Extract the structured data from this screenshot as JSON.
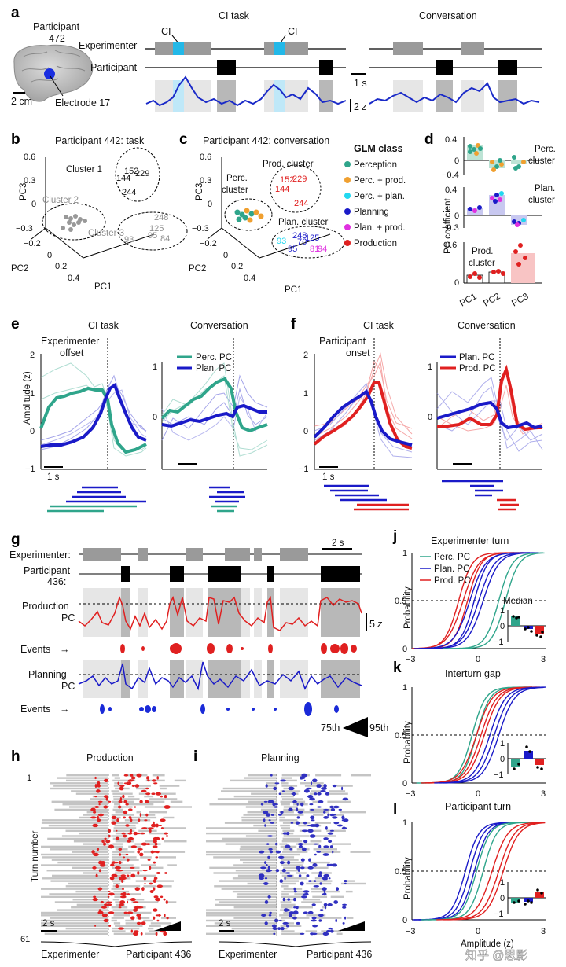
{
  "panels": {
    "a": "a",
    "b": "b",
    "c": "c",
    "d": "d",
    "e": "e",
    "f": "f",
    "g": "g",
    "h": "h",
    "i": "i",
    "j": "j",
    "k": "k",
    "l": "l"
  },
  "a": {
    "participant": "Participant",
    "participant_id": "472",
    "scale": "2 cm",
    "electrode": "Electrode 17",
    "title_task": "CI task",
    "title_conv": "Conversation",
    "row_experimenter": "Experimenter",
    "row_participant": "Participant",
    "ci1": "CI",
    "ci2": "CI",
    "time_scale": "1 s",
    "amp_scale_num": "2",
    "amp_scale_unit": "z"
  },
  "b": {
    "title": "Participant 442: task",
    "cluster1": "Cluster 1",
    "cluster2": "Cluster 2",
    "cluster3": "Cluster 3",
    "pc1": "PC1",
    "pc2": "PC2",
    "pc3": "PC3",
    "z_ticks": [
      "0.6",
      "0.3",
      "0",
      "−0.3"
    ],
    "y_ticks": [
      "−0.2",
      "0",
      "0.2",
      "0.4"
    ],
    "c1_nums": [
      "152",
      "229",
      "144",
      "244"
    ],
    "c3_nums": [
      "248",
      "125",
      "95",
      "93",
      "84"
    ]
  },
  "c": {
    "title": "Participant 442: conversation",
    "perc_cluster": "Perc.\ncluster",
    "prod_cluster": "Prod. cluster",
    "plan_cluster": "Plan. cluster",
    "pc1": "PC1",
    "pc2": "PC2",
    "pc3": "PC3",
    "z_ticks": [
      "0.6",
      "0.3",
      "0",
      "−0.3"
    ],
    "y_ticks": [
      "−0.2",
      "0",
      "0.2",
      "0.4"
    ],
    "prod_nums": [
      "152",
      "229",
      "144",
      "244"
    ],
    "plan_nums": [
      "248",
      "125",
      "93",
      "76",
      "95",
      "81",
      "94"
    ],
    "legend_title": "GLM class",
    "legend": [
      {
        "label": "Perception",
        "color": "#2fa58b"
      },
      {
        "label": "Perc. + prod.",
        "color": "#f0a030"
      },
      {
        "label": "Perc. + plan.",
        "color": "#22d8f0"
      },
      {
        "label": "Planning",
        "color": "#1a1ac8"
      },
      {
        "label": "Plan. + prod.",
        "color": "#e030e0"
      },
      {
        "label": "Production",
        "color": "#e02020"
      }
    ]
  },
  "d": {
    "ylabel": "PC coefficient",
    "x_ticks": [
      "PC1",
      "PC2",
      "PC3"
    ],
    "perc_label": "Perc.\ncluster",
    "plan_label": "Plan.\ncluster",
    "prod_label": "Prod.\ncluster",
    "top_ticks": [
      "0.4",
      "0",
      "−0.4"
    ],
    "mid_ticks": [
      "0.4",
      "0",
      "−0.3"
    ],
    "bot_ticks": [
      "0.6",
      "0"
    ]
  },
  "e": {
    "title_task": "CI task",
    "title_conv": "Conversation",
    "offset_label": "Experimenter\noffset",
    "ylabel": "Amplitude (z)",
    "y_ticks": [
      "2",
      "1",
      "0",
      "−1"
    ],
    "y_ticks2": [
      "1",
      "0"
    ],
    "legend_perc": "Perc. PC",
    "legend_plan": "Plan. PC",
    "time_scale": "1 s"
  },
  "f": {
    "title_task": "CI task",
    "title_conv": "Conversation",
    "onset_label": "Participant\nonset",
    "y_ticks": [
      "2",
      "1",
      "0",
      "−1"
    ],
    "y_ticks2": [
      "1",
      "0"
    ],
    "legend_plan": "Plan. PC",
    "legend_prod": "Prod. PC",
    "time_scale": "1 s"
  },
  "g": {
    "experimenter": "Experimenter:",
    "participant": "Participant\n436:",
    "production_pc": "Production\nPC",
    "planning_pc": "Planning\nPC",
    "events": "Events",
    "time_scale": "2 s",
    "amp_scale_num": "5",
    "amp_scale_unit": "z",
    "pct75": "75th",
    "pct95": "95th"
  },
  "h": {
    "title": "Production",
    "ylabel": "Turn number",
    "turn_first": "1",
    "turn_last": "61",
    "time_scale": "2 s",
    "bottom_left": "Experimenter",
    "bottom_right": "Participant 436"
  },
  "i": {
    "title": "Planning",
    "time_scale": "2 s",
    "bottom_left": "Experimenter",
    "bottom_right": "Participant 436"
  },
  "j": {
    "title": "Experimenter turn",
    "ylabel": "Probability",
    "y_ticks": [
      "1",
      "0.5",
      "0"
    ],
    "x_ticks": [
      "−3",
      "0",
      "3"
    ],
    "legend": [
      "Perc. PC",
      "Plan. PC",
      "Prod. PC"
    ],
    "median": "Median",
    "inset_ticks": [
      "1",
      "0",
      "−1"
    ]
  },
  "k": {
    "title": "Interturn gap",
    "ylabel": "Probability",
    "y_ticks": [
      "1",
      "0.5",
      "0"
    ],
    "x_ticks": [
      "−3",
      "0",
      "3"
    ],
    "inset_ticks": [
      "1",
      "0",
      "−1"
    ]
  },
  "l": {
    "title": "Participant turn",
    "ylabel": "Probability",
    "y_ticks": [
      "1",
      "0.5",
      "0"
    ],
    "x_ticks": [
      "−3",
      "0",
      "3"
    ],
    "xlabel": "Amplitude (z)",
    "inset_ticks": [
      "1",
      "0",
      "−1"
    ]
  },
  "watermark": "知乎 @思影",
  "colors": {
    "perc": "#2fa58b",
    "plan": "#1a1ac8",
    "prod": "#e02020",
    "gray": "#9a9a9a",
    "shade": "#e6e6e6",
    "cyan": "#22b8e8"
  }
}
